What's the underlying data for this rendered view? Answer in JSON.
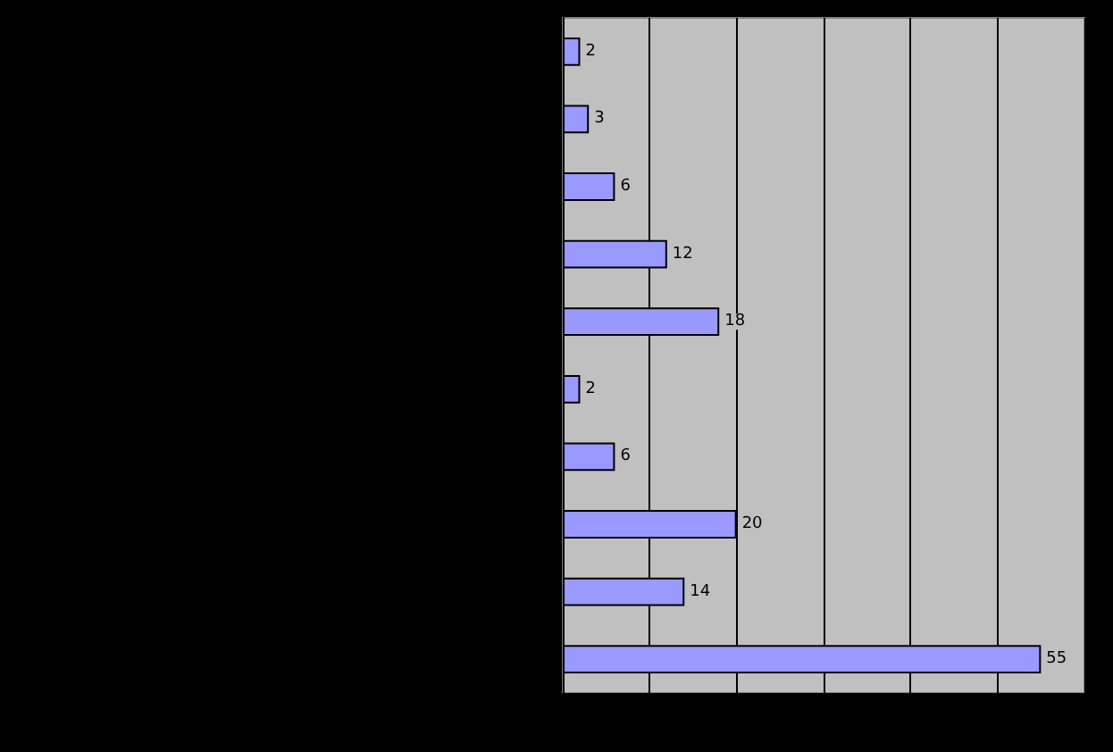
{
  "chart_data": {
    "type": "bar",
    "orientation": "horizontal",
    "categories": [
      null,
      null,
      null,
      null,
      null,
      null,
      null,
      null,
      null,
      null
    ],
    "values": [
      2,
      3,
      6,
      12,
      18,
      2,
      6,
      20,
      14,
      55
    ],
    "color": "#9999ff",
    "data_labels": true,
    "grid": "x",
    "xlim": [
      0,
      60
    ],
    "xticks": [
      {
        "value": 0,
        "label": null
      },
      {
        "value": 10,
        "label": null
      },
      {
        "value": 20,
        "label": null
      },
      {
        "value": 30,
        "label": null
      },
      {
        "value": 40,
        "label": null
      },
      {
        "value": 50,
        "label": null
      },
      {
        "value": 60,
        "label": null
      }
    ]
  }
}
